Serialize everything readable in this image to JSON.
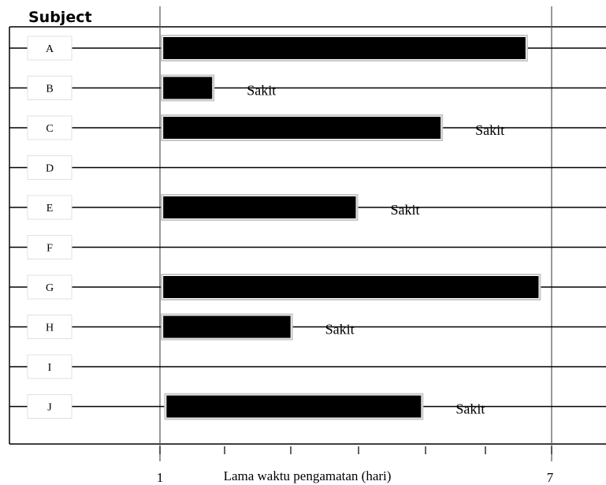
{
  "chart_data": {
    "type": "bar",
    "orientation": "horizontal",
    "title": "Subject",
    "xlabel": "Lama waktu pengamatan  (hari)",
    "x_tick_labels": [
      "1",
      "7"
    ],
    "xlim": [
      1,
      7
    ],
    "categories": [
      "A",
      "B",
      "C",
      "D",
      "E",
      "F",
      "G",
      "H",
      "I",
      "J"
    ],
    "bars": [
      {
        "subject": "A",
        "start": 1.05,
        "end": 6.6,
        "label": ""
      },
      {
        "subject": "B",
        "start": 1.05,
        "end": 1.8,
        "label": "Sakit"
      },
      {
        "subject": "C",
        "start": 1.05,
        "end": 5.3,
        "label": "Sakit"
      },
      {
        "subject": "D",
        "start": null,
        "end": null,
        "label": ""
      },
      {
        "subject": "E",
        "start": 1.05,
        "end": 4.0,
        "label": "Sakit"
      },
      {
        "subject": "F",
        "start": null,
        "end": null,
        "label": ""
      },
      {
        "subject": "G",
        "start": 1.05,
        "end": 6.8,
        "label": ""
      },
      {
        "subject": "H",
        "start": 1.05,
        "end": 3.0,
        "label": "Sakit"
      },
      {
        "subject": "I",
        "start": null,
        "end": null,
        "label": ""
      },
      {
        "subject": "J",
        "start": 1.1,
        "end": 5.0,
        "label": "Sakit"
      }
    ],
    "colors": {
      "bar": "#000000",
      "bar_shadow": "#c8c8c8",
      "line": "#000000"
    }
  }
}
